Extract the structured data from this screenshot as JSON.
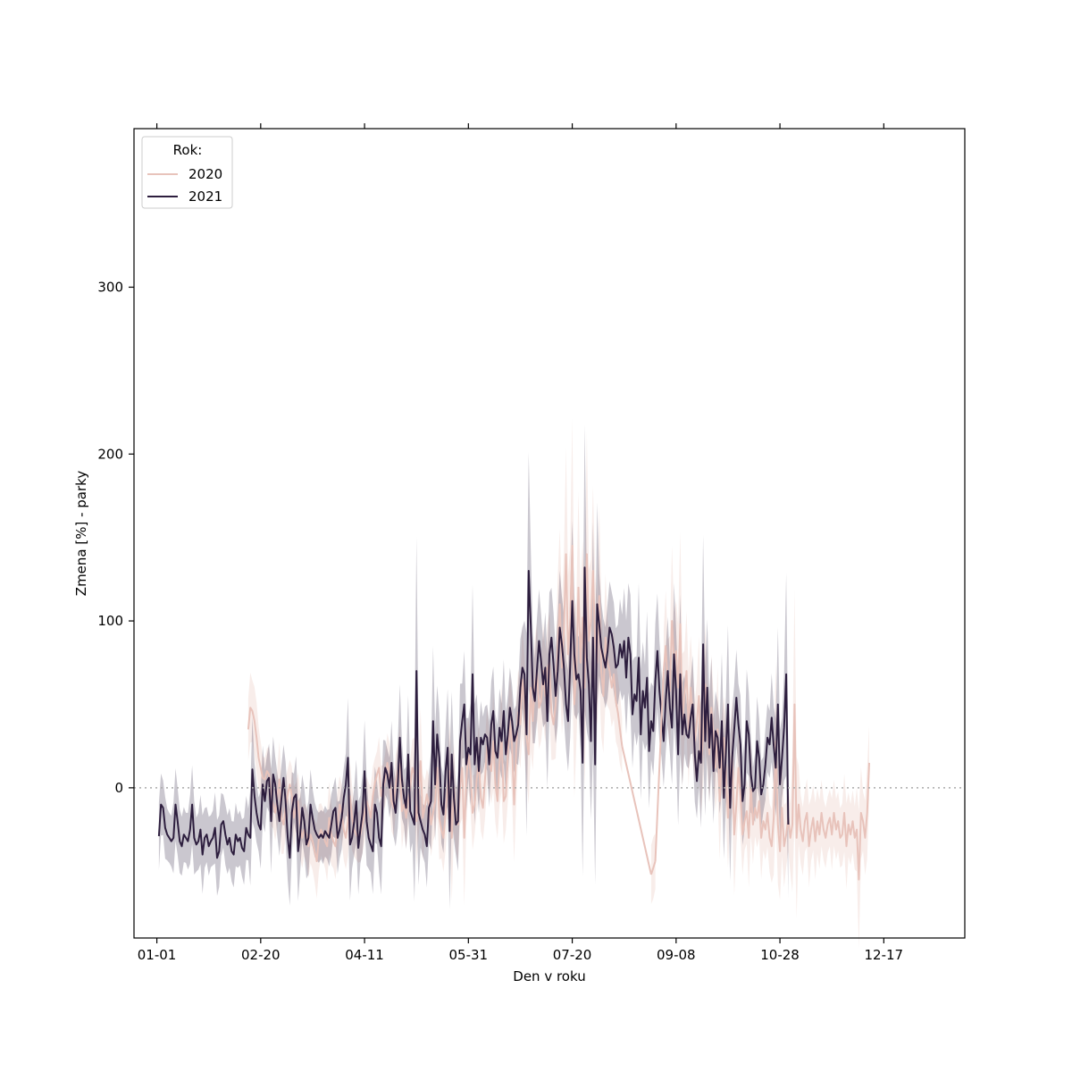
{
  "chart_data": {
    "type": "line",
    "title": "",
    "xlabel": "Den v roku",
    "ylabel": "Zmena [%] - parky",
    "x_unit": "day of year",
    "xlim": [
      -10,
      390
    ],
    "ylim": [
      -90,
      395
    ],
    "x_ticks": [
      {
        "day": 1,
        "label": "01-01"
      },
      {
        "day": 51,
        "label": "02-20"
      },
      {
        "day": 101,
        "label": "04-11"
      },
      {
        "day": 151,
        "label": "05-31"
      },
      {
        "day": 201,
        "label": "07-20"
      },
      {
        "day": 251,
        "label": "09-08"
      },
      {
        "day": 301,
        "label": "10-28"
      },
      {
        "day": 351,
        "label": "12-17"
      }
    ],
    "y_ticks": [
      0,
      100,
      200,
      300
    ],
    "reference_line": {
      "y": 0,
      "style": "dotted",
      "color": "#aaaaaa"
    },
    "grid": false,
    "legend": {
      "title": "Rok:",
      "position": "top-left"
    },
    "series": [
      {
        "name": "2020",
        "color": "#e8c3bb",
        "band_opacity": 0.3,
        "segments": [
          {
            "start_day": 45,
            "values": [
              35,
              48,
              46,
              40,
              30,
              18,
              12,
              6,
              5,
              10,
              8,
              -6,
              -10,
              -15,
              -6,
              5,
              -18,
              -22,
              -12,
              -4,
              2,
              -5,
              -18,
              -12,
              -8,
              -22,
              -30,
              -25,
              -28,
              -35,
              -28,
              -32,
              -38,
              -44,
              -30,
              -25,
              -28,
              -32,
              -35,
              -18,
              -28,
              -32,
              -35,
              -22,
              -10,
              -15,
              -25,
              -30,
              -20,
              -5,
              -18,
              -25,
              -28,
              -30,
              -28,
              -22,
              -15,
              -8,
              -12,
              -18,
              -5,
              3,
              8,
              12,
              -5,
              0,
              5,
              15,
              8,
              -8,
              -12,
              2,
              10,
              14,
              -14,
              -10,
              -18,
              -8,
              0,
              12,
              8,
              -20,
              -6,
              16,
              -18,
              -12,
              -4,
              -10,
              -22,
              -15,
              -8,
              12,
              -18,
              -25,
              -30,
              -15,
              0,
              10,
              -30,
              0,
              -18,
              -22,
              0,
              12,
              -30,
              5,
              20,
              10,
              -15,
              -10,
              5,
              15,
              -6,
              -12,
              5,
              25,
              16,
              10,
              28,
              2,
              -8,
              15,
              30,
              -8,
              -5,
              20,
              40,
              25,
              -10,
              22,
              45,
              38,
              65,
              50,
              30,
              20,
              60,
              40,
              62,
              70,
              48,
              52,
              70,
              55,
              72,
              75,
              45,
              38,
              50,
              85,
              110,
              72,
              95,
              140,
              80,
              100,
              145,
              50,
              70,
              120,
              75,
              102,
              60,
              140,
              88,
              100,
              130,
              88,
              75,
              115,
              70,
              55,
              90,
              75,
              70,
              60,
              68,
              52,
              45,
              35,
              25
            ]
          },
          {
            "start_day": 239,
            "values": [
              -52,
              -48,
              -44
            ]
          },
          {
            "start_day": 245,
            "values": [
              70,
              85,
              62,
              58,
              100,
              75,
              82,
              60,
              98,
              40,
              55,
              70,
              35,
              60,
              45,
              28,
              40,
              55,
              15,
              30,
              62,
              40,
              20,
              48,
              30,
              12,
              35,
              -8,
              18,
              30,
              10,
              -18,
              4,
              20,
              -28,
              -10,
              12,
              -5,
              -28,
              -20,
              -14,
              -30,
              0,
              -22,
              -12,
              -18,
              -8,
              -30,
              -20,
              -25,
              -15,
              -30,
              -35,
              -18,
              28,
              -22,
              -38,
              -12,
              -35,
              -28,
              -18,
              -30,
              -22,
              50,
              -30,
              -10,
              -25,
              -32,
              -20,
              -15,
              -35,
              -25,
              -18,
              -32,
              -20,
              -28,
              -15,
              -25,
              -30,
              -22,
              -18,
              -28,
              -15,
              -25,
              -20,
              -30,
              -28,
              -15,
              -35,
              -22,
              -28,
              -20,
              -30,
              -25,
              -55,
              -15,
              -20,
              -30,
              -15,
              15
            ]
          }
        ]
      },
      {
        "name": "2021",
        "color": "#2d1e3e",
        "band_opacity": 0.25,
        "segments": [
          {
            "start_day": 2,
            "values": [
              -29,
              -10,
              -12,
              -24,
              -28,
              -30,
              -32,
              -30,
              -10,
              -20,
              -32,
              -35,
              -28,
              -30,
              -32,
              -25,
              -10,
              -30,
              -34,
              -32,
              -25,
              -40,
              -30,
              -28,
              -35,
              -32,
              -30,
              -24,
              -42,
              -38,
              -22,
              -20,
              -28,
              -34,
              -30,
              -38,
              -40,
              -28,
              -32,
              -30,
              -36,
              -38,
              -24,
              -28,
              -30,
              11,
              -5,
              -15,
              -22,
              -25,
              2,
              -8,
              4,
              6,
              -20,
              8,
              2,
              -10,
              -20,
              -6,
              6,
              -8,
              -30,
              -42,
              -15,
              -6,
              -4,
              -38,
              -28,
              -12,
              -20,
              -34,
              -30,
              -10,
              -18,
              -25,
              -28,
              -30,
              -28,
              -30,
              -26,
              -28,
              -30,
              -22,
              -14,
              -12,
              -30,
              -25,
              -18,
              -6,
              2,
              18,
              -34,
              -30,
              -20,
              -8,
              -36,
              -25,
              -15,
              10,
              -20,
              -30,
              -34,
              -38,
              -10,
              -15,
              -30,
              -35,
              2,
              12,
              8,
              0,
              15,
              -8,
              -15,
              2,
              30,
              5,
              -6,
              -12,
              20,
              -14,
              -18,
              -22,
              70,
              -15,
              -20,
              -25,
              -28,
              -35,
              -12,
              -8,
              40,
              2,
              32,
              18,
              -10,
              -16,
              10,
              24,
              -26,
              20,
              -6,
              -22,
              -20,
              28,
              40,
              50,
              14,
              24,
              20,
              68,
              14,
              30,
              10,
              30,
              26,
              32,
              30,
              14,
              38,
              46,
              22,
              18,
              36,
              28,
              46,
              20,
              32,
              48,
              40,
              28,
              32,
              38,
              60,
              72,
              68,
              32,
              130,
              98,
              60,
              52,
              70,
              88,
              76,
              62,
              72,
              40,
              80,
              90,
              74,
              55,
              70,
              96,
              86,
              72,
              50,
              40,
              74,
              112,
              80,
              65,
              68,
              58,
              15,
              132,
              78,
              62,
              28,
              90,
              14,
              110,
              98,
              84,
              78,
              72,
              82,
              96,
              92,
              84,
              72,
              74,
              86,
              78,
              88,
              66,
              90,
              80,
              44,
              56,
              52,
              78,
              32,
              58,
              48,
              66,
              22,
              40,
              34,
              64,
              82,
              58,
              44,
              28,
              52,
              70,
              48,
              36,
              80,
              58,
              20,
              68,
              32,
              44,
              32,
              30,
              42,
              50,
              20,
              4,
              22,
              15,
              86,
              28,
              60,
              24,
              44,
              10,
              34,
              30,
              12,
              40,
              -6,
              22,
              50,
              -12,
              18,
              35,
              54,
              38,
              26,
              -8,
              2,
              40,
              32,
              8,
              -2,
              0,
              28,
              18,
              -4,
              2,
              14,
              30,
              26,
              42,
              25,
              12,
              50,
              2,
              18,
              36,
              68,
              -22
            ]
          }
        ]
      }
    ]
  }
}
